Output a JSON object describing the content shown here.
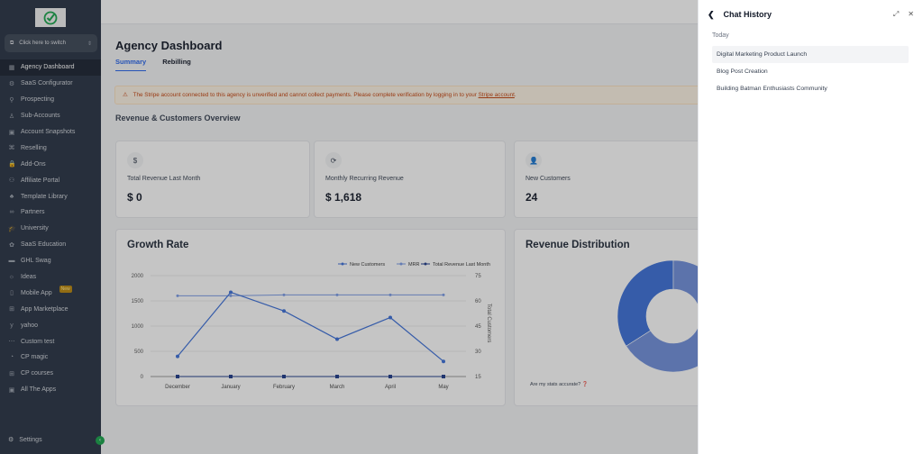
{
  "sidebar": {
    "switch_label": "Click here to switch",
    "items": [
      {
        "label": "Agency Dashboard",
        "icon": "dashboard-icon",
        "active": true
      },
      {
        "label": "SaaS Configurator",
        "icon": "configurator-icon"
      },
      {
        "label": "Prospecting",
        "icon": "prospecting-icon"
      },
      {
        "label": "Sub-Accounts",
        "icon": "user-icon"
      },
      {
        "label": "Account Snapshots",
        "icon": "snapshot-icon"
      },
      {
        "label": "Reselling",
        "icon": "reselling-icon"
      },
      {
        "label": "Add-Ons",
        "icon": "bag-icon"
      },
      {
        "label": "Affiliate Portal",
        "icon": "affiliate-icon"
      },
      {
        "label": "Template Library",
        "icon": "template-icon"
      },
      {
        "label": "Partners",
        "icon": "handshake-icon"
      },
      {
        "label": "University",
        "icon": "graduation-cap-icon"
      },
      {
        "label": "SaaS Education",
        "icon": "education-icon"
      },
      {
        "label": "GHL Swag",
        "icon": "store-icon"
      },
      {
        "label": "Ideas",
        "icon": "lightbulb-icon"
      },
      {
        "label": "Mobile App",
        "icon": "mobile-icon",
        "badge": "New"
      },
      {
        "label": "App Marketplace",
        "icon": "grid-icon"
      },
      {
        "label": "yahoo",
        "icon": "yahoo-icon"
      },
      {
        "label": "Custom test",
        "icon": "custom-icon"
      },
      {
        "label": "CP magic",
        "icon": "magic-icon"
      },
      {
        "label": "CP courses",
        "icon": "windows-icon"
      },
      {
        "label": "All The Apps",
        "icon": "apps-icon"
      }
    ],
    "settings_label": "Settings"
  },
  "main": {
    "title": "Agency Dashboard",
    "tabs": [
      {
        "label": "Summary",
        "active": true
      },
      {
        "label": "Rebilling"
      }
    ],
    "alert": {
      "text": "The Stripe account connected to this agency is unverified and cannot collect payments. Please complete verification by logging in to your",
      "link": "Stripe account",
      "end": "."
    },
    "section_title": "Revenue & Customers Overview",
    "stats": [
      {
        "icon": "dollar-icon",
        "label": "Total Revenue Last Month",
        "value": "$ 0"
      },
      {
        "icon": "refresh-icon",
        "label": "Monthly Recurring Revenue",
        "value": "$ 1,618"
      },
      {
        "icon": "user-plus-icon",
        "label": "New Customers",
        "value": "24"
      }
    ],
    "growth_title": "Growth Rate",
    "distribution_title": "Revenue Distribution",
    "accuracy_link": "Are my stats accurate?"
  },
  "chart_data": [
    {
      "type": "line",
      "title": "Growth Rate",
      "categories": [
        "December",
        "January",
        "February",
        "March",
        "April",
        "May"
      ],
      "series": [
        {
          "name": "New Customers",
          "color": "#3b6fd9",
          "values": [
            400,
            1670,
            1300,
            740,
            1170,
            300
          ]
        },
        {
          "name": "MRR",
          "color": "#7a9be6",
          "values": [
            1600,
            1600,
            1618,
            1618,
            1618,
            1618
          ]
        },
        {
          "name": "Total Revenue Last Month",
          "color": "#1e3a8a",
          "values": [
            0,
            0,
            0,
            0,
            0,
            0
          ]
        }
      ],
      "ylim": [
        0,
        2000
      ],
      "yticks": [
        "0",
        "500",
        "1000",
        "1500",
        "2000"
      ],
      "y2lim": [
        15,
        75
      ],
      "y2ticks": [
        "15",
        "30",
        "45",
        "60",
        "75"
      ],
      "y2label": "Total Customers",
      "legend": "top-right"
    },
    {
      "type": "pie",
      "title": "Revenue Distribution",
      "values": [
        34,
        66
      ],
      "colors": [
        "#3b6fd9",
        "#6f8fdc"
      ]
    }
  ],
  "chat_panel": {
    "title": "Chat History",
    "group": "Today",
    "items": [
      "Digital Marketing Product Launch",
      "Blog Post Creation",
      "Building Batman Enthusiasts Community"
    ]
  }
}
